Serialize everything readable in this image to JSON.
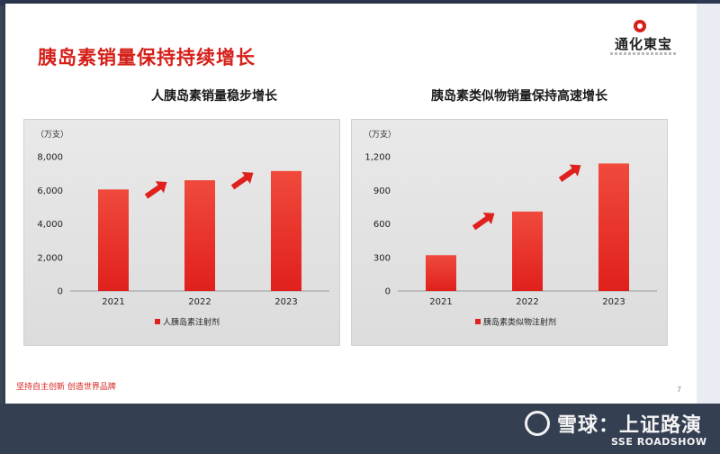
{
  "slide": {
    "title": "胰岛素销量保持持续增长",
    "logo_text": "通化東宝",
    "slogan": "坚持自主创新 创造世界品牌",
    "page_number": "7"
  },
  "watermark": {
    "text": "雪球：上证路演",
    "sub": "SSE ROADSHOW"
  },
  "chart_data": [
    {
      "type": "bar",
      "title": "人胰岛素销量稳步增长",
      "unit": "（万支）",
      "categories": [
        "2021",
        "2022",
        "2023"
      ],
      "series": [
        {
          "name": "人胰岛素注射剂",
          "values": [
            6050,
            6600,
            7150
          ],
          "color": "#e0201c"
        }
      ],
      "yticks": [
        "0",
        "2,000",
        "4,000",
        "6,000",
        "8,000"
      ],
      "ytick_values": [
        0,
        2000,
        4000,
        6000,
        8000
      ],
      "ylim": [
        0,
        8000
      ],
      "legend_position": "bottom"
    },
    {
      "type": "bar",
      "title": "胰岛素类似物销量保持高速增长",
      "unit": "（万支）",
      "categories": [
        "2021",
        "2022",
        "2023"
      ],
      "series": [
        {
          "name": "胰岛素类似物注射剂",
          "values": [
            320,
            710,
            1140
          ],
          "color": "#e0201c"
        }
      ],
      "yticks": [
        "0",
        "300",
        "600",
        "900",
        "1,200"
      ],
      "ytick_values": [
        0,
        300,
        600,
        900,
        1200
      ],
      "ylim": [
        0,
        1200
      ],
      "legend_position": "bottom"
    }
  ]
}
